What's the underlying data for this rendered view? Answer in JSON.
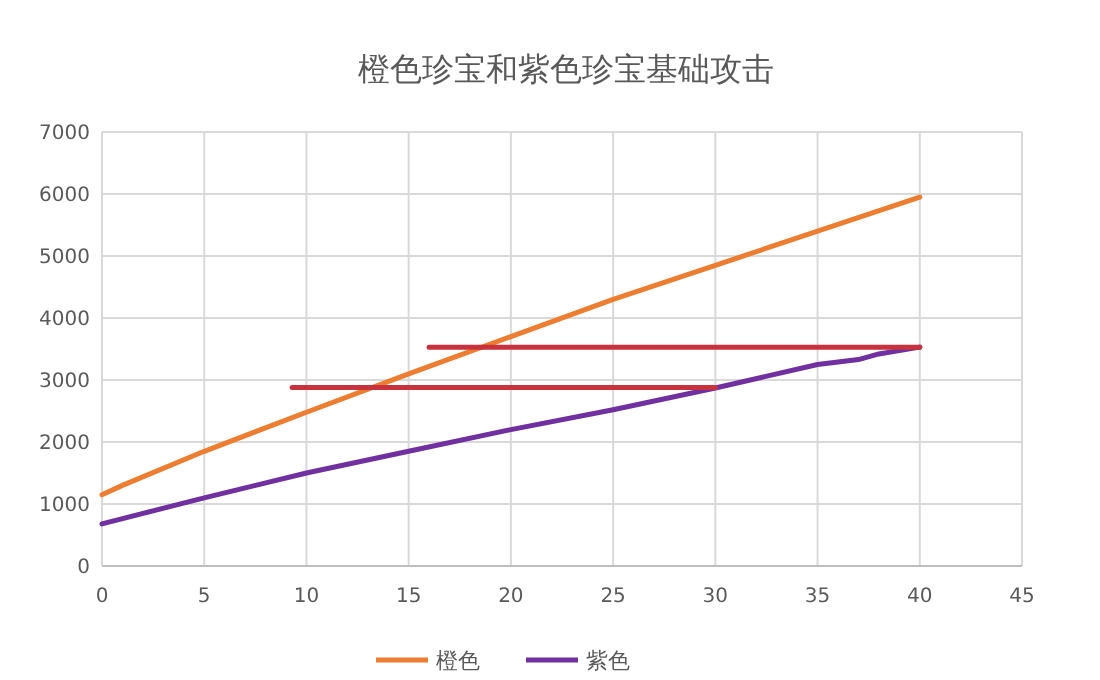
{
  "chart_data": {
    "type": "line",
    "title": "橙色珍宝和紫色珍宝基础攻击",
    "x": [
      0,
      1,
      5,
      10,
      15,
      20,
      25,
      30,
      35,
      40
    ],
    "series": [
      {
        "name": "橙色",
        "color": "#ed7d31",
        "values": [
          1150,
          1300,
          1850,
          2480,
          3100,
          3700,
          4300,
          4850,
          5400,
          5950
        ]
      },
      {
        "name": "紫色",
        "color": "#7030a0",
        "x": [
          0,
          5,
          10,
          15,
          20,
          25,
          30,
          35,
          37,
          38,
          40
        ],
        "values": [
          680,
          1100,
          1500,
          1850,
          2200,
          2520,
          2870,
          3250,
          3330,
          3420,
          3530
        ]
      },
      {
        "color": "#c8323c",
        "x": [
          9.3,
          30
        ],
        "values": [
          2880,
          2880
        ]
      },
      {
        "color": "#c8323c",
        "x": [
          16,
          40
        ],
        "values": [
          3530,
          3530
        ]
      }
    ],
    "xlim": [
      0,
      45
    ],
    "xticks": [
      0,
      5,
      10,
      15,
      20,
      25,
      30,
      35,
      40,
      45
    ],
    "ylim": [
      0,
      7000
    ],
    "yticks": [
      0,
      1000,
      2000,
      3000,
      4000,
      5000,
      6000,
      7000
    ],
    "grid": true,
    "legend": "bottom",
    "marker": "none",
    "line_style": "solid"
  }
}
